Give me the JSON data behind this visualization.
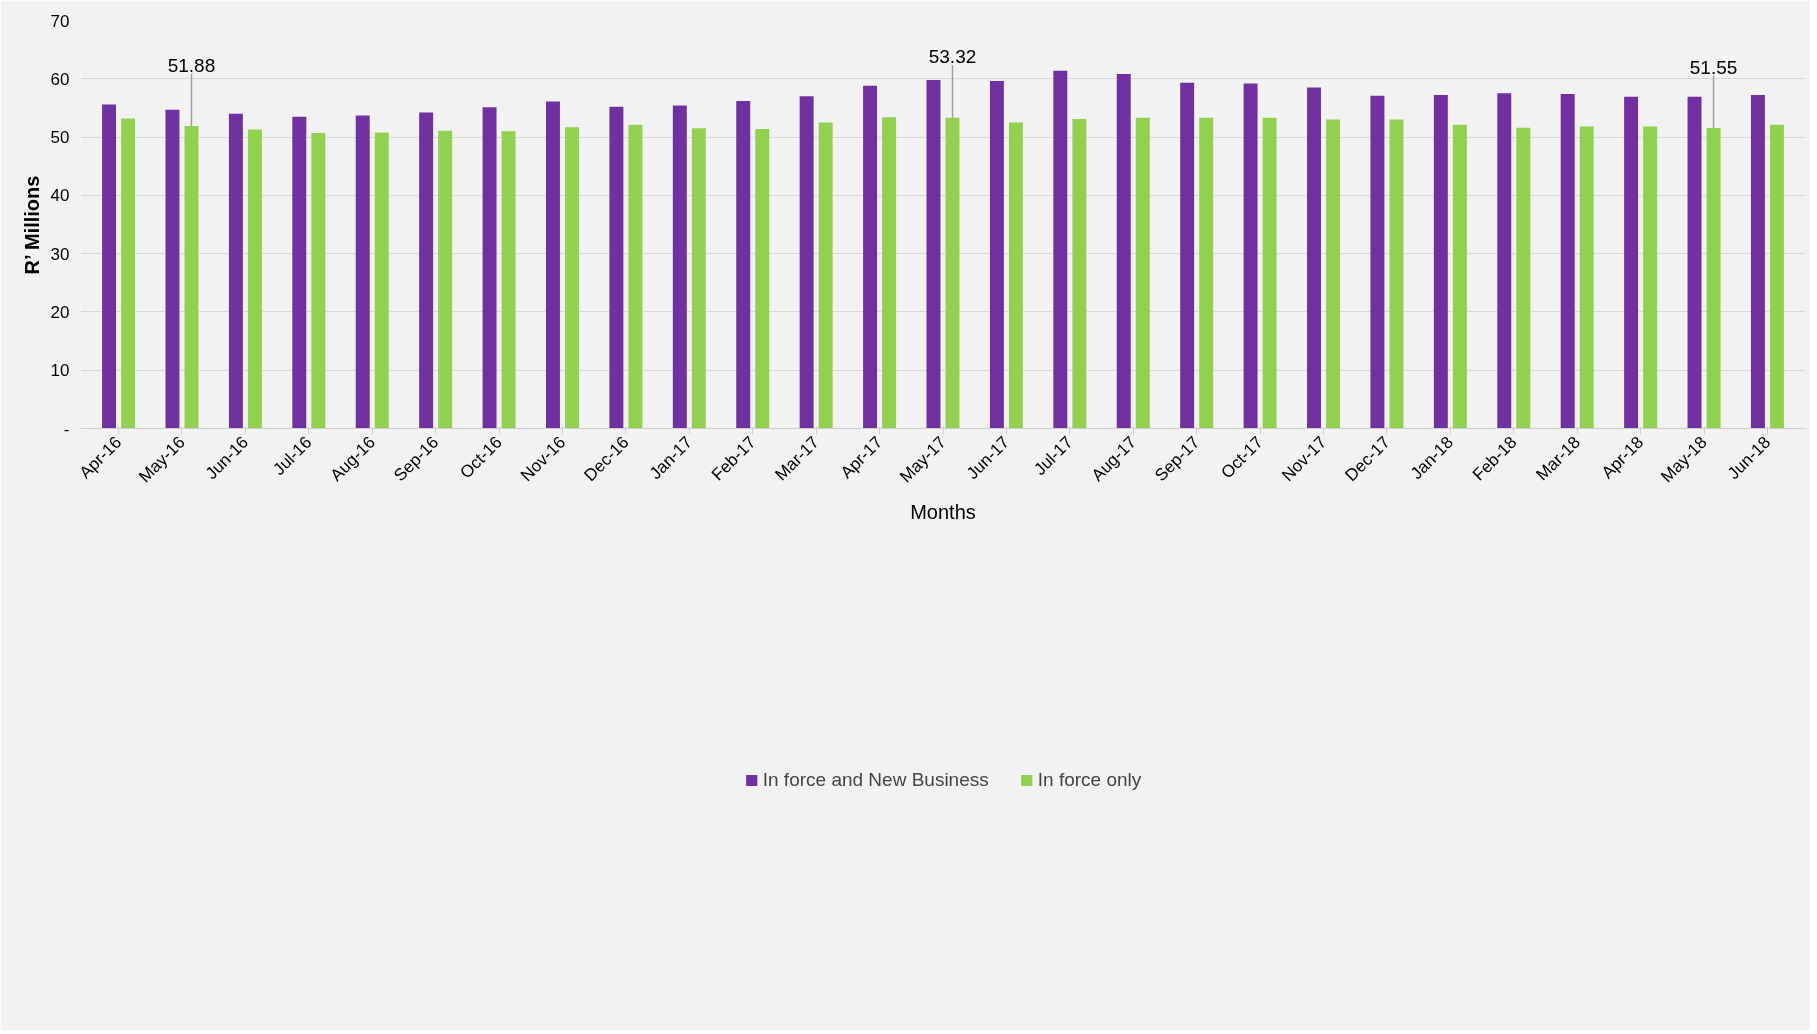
{
  "chart_data": {
    "type": "bar",
    "xlabel": "Months",
    "ylabel": "R’ Millions",
    "categories": [
      "Apr-16",
      "May-16",
      "Jun-16",
      "Jul-16",
      "Aug-16",
      "Sep-16",
      "Oct-16",
      "Nov-16",
      "Dec-16",
      "Jan-17",
      "Feb-17",
      "Mar-17",
      "Apr-17",
      "May-17",
      "Jun-17",
      "Jul-17",
      "Aug-17",
      "Sep-17",
      "Oct-17",
      "Nov-17",
      "Dec-17",
      "Jan-18",
      "Feb-18",
      "Mar-18",
      "Apr-18",
      "May-18",
      "Jun-18"
    ],
    "series": [
      {
        "name": "In force and New Business",
        "color": "#7030a0",
        "values": [
          55.6,
          54.7,
          54.0,
          53.5,
          53.7,
          54.2,
          55.1,
          56.1,
          55.2,
          55.4,
          56.2,
          57.0,
          58.8,
          59.8,
          59.6,
          61.4,
          60.8,
          59.3,
          59.2,
          58.5,
          57.1,
          57.2,
          57.5,
          57.4,
          56.9,
          56.9,
          57.2
        ]
      },
      {
        "name": "In force only",
        "color": "#92d050",
        "values": [
          53.2,
          51.88,
          51.3,
          50.7,
          50.8,
          51.1,
          51.0,
          51.7,
          52.1,
          51.5,
          51.4,
          52.5,
          53.4,
          53.32,
          52.5,
          53.1,
          53.3,
          53.3,
          53.3,
          53.0,
          53.0,
          52.1,
          51.6,
          51.8,
          51.8,
          51.55,
          52.1
        ]
      }
    ],
    "ylim": [
      0,
      70
    ],
    "yticks": [
      {
        "value": 0,
        "label": "-"
      },
      10,
      20,
      30,
      40,
      50,
      60,
      70
    ],
    "grid": "y",
    "legend": "bottom",
    "annotations": [
      {
        "text": "51.88",
        "x": "May-16",
        "y": 51.88
      },
      {
        "text": "53.32",
        "x": "May-17",
        "y": 53.32
      },
      {
        "text": "51.55",
        "x": "May-18",
        "y": 51.55
      }
    ]
  }
}
